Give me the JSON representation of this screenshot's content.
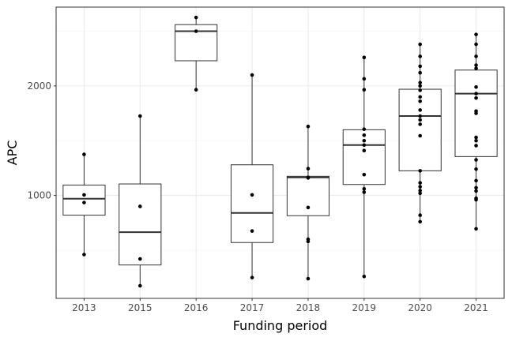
{
  "chart_data": {
    "type": "boxplot",
    "xlabel": "Funding period",
    "ylabel": "APC",
    "ylim": [
      60,
      2720
    ],
    "y_ticks": [
      1000,
      2000
    ],
    "grid": true,
    "legend": "none",
    "colors": {
      "box_fill": "#ffffff",
      "box_line": "#333333",
      "point": "#000000",
      "panel_border": "#333333",
      "grid": "#ebebeb"
    },
    "categories": [
      "2013",
      "2015",
      "2016",
      "2017",
      "2018",
      "2019",
      "2020",
      "2021"
    ],
    "boxes": [
      {
        "category": "2013",
        "min": 460,
        "q1": 820,
        "median": 970,
        "q3": 1095,
        "max": 1375
      },
      {
        "category": "2015",
        "min": 175,
        "q1": 365,
        "median": 665,
        "q3": 1105,
        "max": 1725
      },
      {
        "category": "2016",
        "min": 1965,
        "q1": 2230,
        "median": 2500,
        "q3": 2560,
        "max": 2625
      },
      {
        "category": "2017",
        "min": 250,
        "q1": 570,
        "median": 840,
        "q3": 1280,
        "max": 2100
      },
      {
        "category": "2018",
        "min": 240,
        "q1": 815,
        "median": 1165,
        "q3": 1175,
        "max": 1630
      },
      {
        "category": "2019",
        "min": 260,
        "q1": 1100,
        "median": 1460,
        "q3": 1600,
        "max": 2260
      },
      {
        "category": "2020",
        "min": 760,
        "q1": 1225,
        "median": 1725,
        "q3": 1970,
        "max": 2380
      },
      {
        "category": "2021",
        "min": 695,
        "q1": 1355,
        "median": 1930,
        "q3": 2145,
        "max": 2470
      }
    ],
    "points": [
      {
        "category": "2013",
        "values": [
          1375,
          1005,
          935,
          460
        ]
      },
      {
        "category": "2015",
        "values": [
          1725,
          900,
          420,
          175
        ]
      },
      {
        "category": "2016",
        "values": [
          2625,
          2500,
          1965
        ]
      },
      {
        "category": "2017",
        "values": [
          2100,
          1005,
          675,
          250
        ]
      },
      {
        "category": "2018",
        "values": [
          1630,
          1245,
          1165,
          1160,
          890,
          600,
          580,
          240
        ]
      },
      {
        "category": "2019",
        "values": [
          2260,
          2065,
          1965,
          1605,
          1550,
          1500,
          1460,
          1410,
          1190,
          1060,
          1030,
          260
        ]
      },
      {
        "category": "2020",
        "values": [
          2380,
          2270,
          2180,
          2120,
          2030,
          2000,
          1960,
          1900,
          1860,
          1780,
          1725,
          1690,
          1650,
          1545,
          1225,
          1115,
          1080,
          1045,
          1020,
          820,
          760
        ]
      },
      {
        "category": "2021",
        "values": [
          2470,
          2380,
          2270,
          2190,
          2160,
          1990,
          1930,
          1890,
          1770,
          1750,
          1530,
          1500,
          1455,
          1325,
          1240,
          1135,
          1070,
          1040,
          975,
          960,
          695
        ]
      }
    ]
  }
}
